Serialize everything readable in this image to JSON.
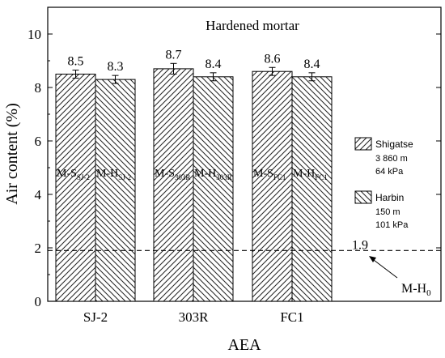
{
  "chart_data": {
    "type": "bar",
    "title": "Hardened mortar",
    "xlabel": "AEA",
    "ylabel": "Air content (%)",
    "ylim": [
      0,
      11
    ],
    "yticks": [
      0,
      2,
      4,
      6,
      8,
      10
    ],
    "categories": [
      "SJ-2",
      "303R",
      "FC1"
    ],
    "series": [
      {
        "name": "Shigatse",
        "legend_lines": [
          "3 860 m",
          "64 kPa"
        ],
        "hatch": "forward-diagonal",
        "values": [
          8.5,
          8.7,
          8.6
        ],
        "errors": [
          0.15,
          0.2,
          0.15
        ],
        "value_labels": [
          "8.5",
          "8.7",
          "8.6"
        ],
        "bar_labels": [
          {
            "main": "M-S",
            "sub": "SJ-2"
          },
          {
            "main": "M-S",
            "sub": "303R"
          },
          {
            "main": "M-S",
            "sub": "FC1"
          }
        ]
      },
      {
        "name": "Harbin",
        "legend_lines": [
          "150 m",
          "101 kPa"
        ],
        "hatch": "backward-diagonal",
        "values": [
          8.3,
          8.4,
          8.4
        ],
        "errors": [
          0.15,
          0.15,
          0.15
        ],
        "value_labels": [
          "8.3",
          "8.4",
          "8.4"
        ],
        "bar_labels": [
          {
            "main": "M-H",
            "sub": "SJ-2"
          },
          {
            "main": "M-H",
            "sub": "303R"
          },
          {
            "main": "M-H",
            "sub": "FC1"
          }
        ]
      }
    ],
    "reference_line": {
      "value": 1.9,
      "label": "1.9",
      "annotation": {
        "main": "M-H",
        "sub": "0"
      },
      "style": "dashed"
    },
    "grid": false,
    "legend_position": "right"
  }
}
